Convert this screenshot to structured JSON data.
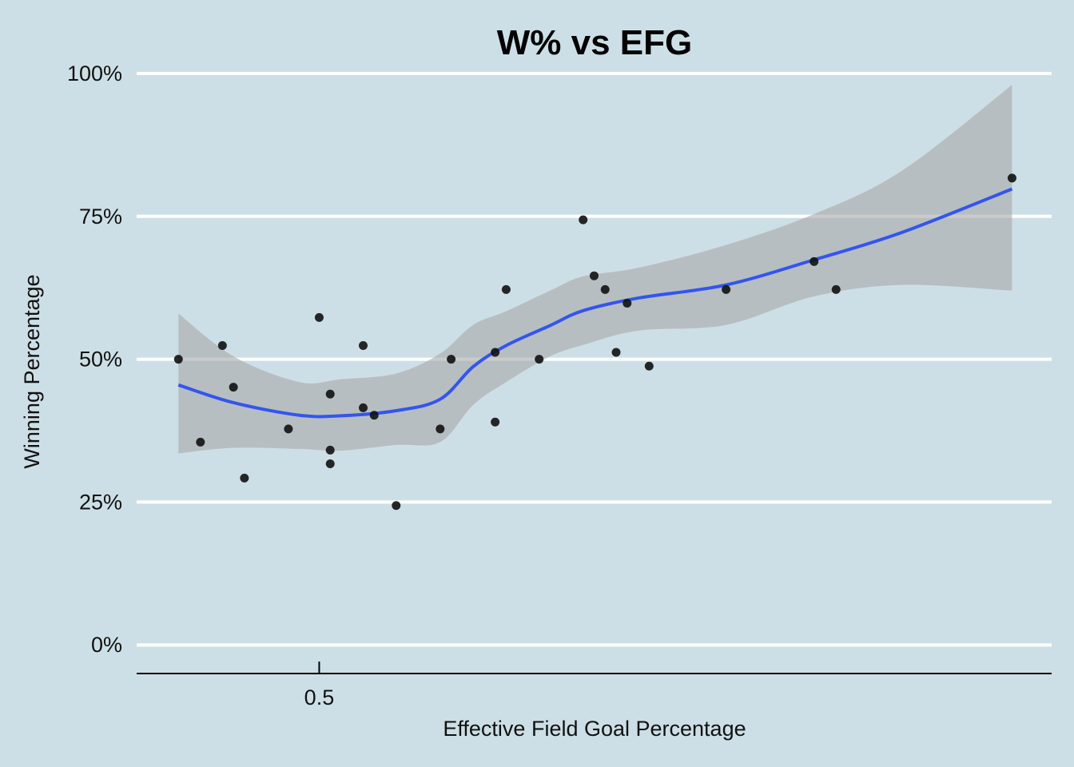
{
  "chart_data": {
    "type": "scatter",
    "title": "W% vs EFG",
    "xlabel": "Effective Field Goal Percentage",
    "ylabel": "Winning Percentage",
    "xlim": [
      0.4917,
      0.5333
    ],
    "ylim": [
      -0.05,
      1.0
    ],
    "x_ticks": [
      {
        "value": 0.5,
        "label": "0.5"
      }
    ],
    "y_ticks": [
      {
        "value": 0.0,
        "label": "0%"
      },
      {
        "value": 0.25,
        "label": "25%"
      },
      {
        "value": 0.5,
        "label": "50%"
      },
      {
        "value": 0.75,
        "label": "75%"
      },
      {
        "value": 1.0,
        "label": "100%"
      }
    ],
    "grid": "horizontal major",
    "colors": {
      "background": "#cddfe6",
      "grid": "#ffffff",
      "points": "#111111",
      "smooth_line": "#3355ee",
      "ribbon": "#a9a9a9"
    },
    "points": [
      {
        "x": 0.4936,
        "y": 0.5
      },
      {
        "x": 0.4946,
        "y": 0.355
      },
      {
        "x": 0.4956,
        "y": 0.524
      },
      {
        "x": 0.4961,
        "y": 0.451
      },
      {
        "x": 0.4966,
        "y": 0.292
      },
      {
        "x": 0.4986,
        "y": 0.378
      },
      {
        "x": 0.5,
        "y": 0.573
      },
      {
        "x": 0.5005,
        "y": 0.439
      },
      {
        "x": 0.5005,
        "y": 0.341
      },
      {
        "x": 0.5005,
        "y": 0.317
      },
      {
        "x": 0.502,
        "y": 0.524
      },
      {
        "x": 0.502,
        "y": 0.415
      },
      {
        "x": 0.5025,
        "y": 0.402
      },
      {
        "x": 0.5035,
        "y": 0.244
      },
      {
        "x": 0.5055,
        "y": 0.378
      },
      {
        "x": 0.506,
        "y": 0.5
      },
      {
        "x": 0.508,
        "y": 0.512
      },
      {
        "x": 0.508,
        "y": 0.39
      },
      {
        "x": 0.5085,
        "y": 0.622
      },
      {
        "x": 0.51,
        "y": 0.5
      },
      {
        "x": 0.512,
        "y": 0.744
      },
      {
        "x": 0.5125,
        "y": 0.646
      },
      {
        "x": 0.513,
        "y": 0.622
      },
      {
        "x": 0.5135,
        "y": 0.512
      },
      {
        "x": 0.514,
        "y": 0.598
      },
      {
        "x": 0.515,
        "y": 0.488
      },
      {
        "x": 0.5185,
        "y": 0.622
      },
      {
        "x": 0.5225,
        "y": 0.671
      },
      {
        "x": 0.5235,
        "y": 0.622
      },
      {
        "x": 0.5315,
        "y": 0.817
      }
    ],
    "smooth": {
      "x": [
        0.4936,
        0.4961,
        0.4991,
        0.501,
        0.5035,
        0.5055,
        0.507,
        0.5085,
        0.5105,
        0.512,
        0.5145,
        0.5185,
        0.5225,
        0.5265,
        0.5315
      ],
      "y": [
        0.455,
        0.424,
        0.402,
        0.401,
        0.41,
        0.43,
        0.487,
        0.524,
        0.559,
        0.585,
        0.607,
        0.63,
        0.674,
        0.722,
        0.798
      ],
      "lower": [
        0.335,
        0.345,
        0.343,
        0.34,
        0.35,
        0.355,
        0.42,
        0.46,
        0.505,
        0.525,
        0.55,
        0.56,
        0.61,
        0.63,
        0.62
      ],
      "upper": [
        0.58,
        0.505,
        0.46,
        0.465,
        0.475,
        0.51,
        0.56,
        0.584,
        0.62,
        0.645,
        0.66,
        0.7,
        0.754,
        0.83,
        0.98
      ]
    }
  }
}
